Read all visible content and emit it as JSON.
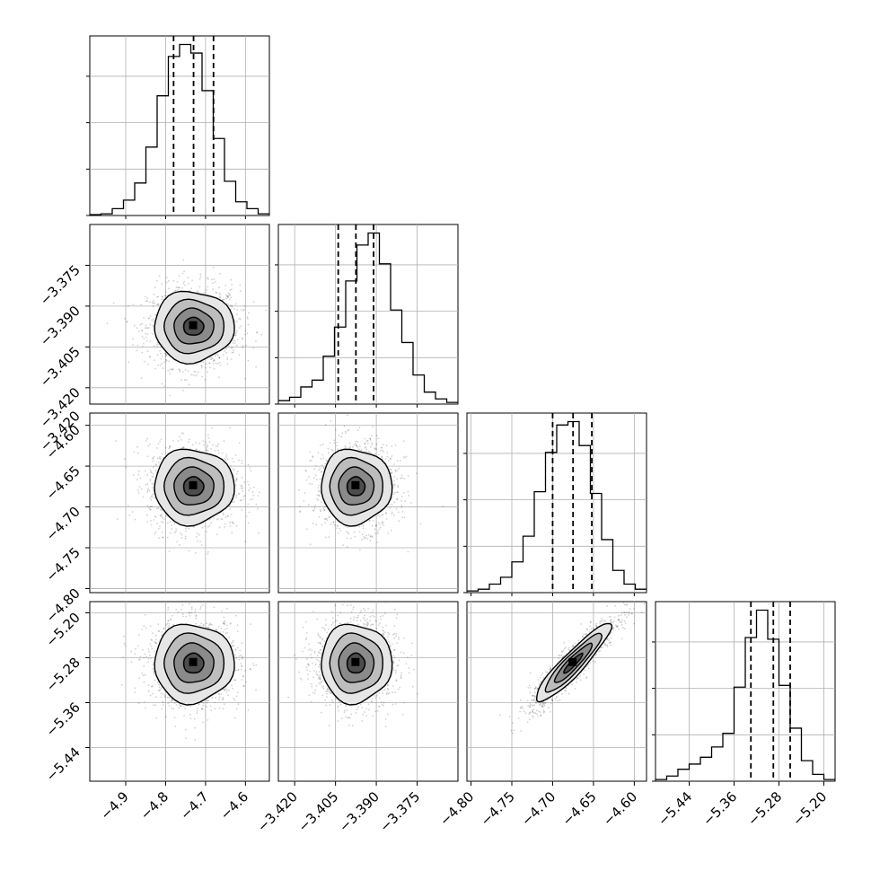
{
  "chart_data": {
    "type": "corner",
    "title": "",
    "grid": true,
    "parameters": [
      {
        "index": 0,
        "range": [
          -4.99,
          -4.54
        ],
        "ticks": [
          -4.9,
          -4.8,
          -4.7,
          -4.6
        ],
        "tick_labels": [
          "−4.9",
          "−4.8",
          "−4.7",
          "−4.6"
        ],
        "quantiles": [
          -4.78,
          -4.73,
          -4.68
        ],
        "hist_counts": [
          0.005,
          0.01,
          0.04,
          0.09,
          0.19,
          0.4,
          0.7,
          0.93,
          1.0,
          0.95,
          0.73,
          0.45,
          0.2,
          0.08,
          0.04,
          0.01
        ],
        "center": -4.73,
        "sigma": 0.05
      },
      {
        "index": 1,
        "range": [
          -3.426,
          -3.36
        ],
        "ticks": [
          -3.42,
          -3.405,
          -3.39,
          -3.375
        ],
        "tick_labels": [
          "−3.420",
          "−3.405",
          "−3.390",
          "−3.375"
        ],
        "quantiles": [
          -3.404,
          -3.3975,
          -3.391
        ],
        "hist_counts": [
          0.02,
          0.04,
          0.1,
          0.14,
          0.28,
          0.45,
          0.72,
          0.93,
          1.0,
          0.82,
          0.55,
          0.36,
          0.17,
          0.07,
          0.03,
          0.01
        ],
        "center": -3.3975,
        "sigma": 0.0065
      },
      {
        "index": 2,
        "range": [
          -4.805,
          -4.585
        ],
        "ticks": [
          -4.8,
          -4.75,
          -4.7,
          -4.65,
          -4.6
        ],
        "tick_labels": [
          "−4.80",
          "−4.75",
          "−4.70",
          "−4.65",
          "−4.60"
        ],
        "quantiles": [
          -4.7,
          -4.675,
          -4.652
        ],
        "hist_counts": [
          0.01,
          0.02,
          0.05,
          0.09,
          0.18,
          0.33,
          0.59,
          0.82,
          0.98,
          1.0,
          0.86,
          0.58,
          0.31,
          0.13,
          0.05,
          0.02
        ],
        "center": -4.675,
        "sigma": 0.023
      },
      {
        "index": 3,
        "range": [
          -5.5,
          -5.18
        ],
        "ticks": [
          -5.44,
          -5.36,
          -5.28,
          -5.2
        ],
        "tick_labels": [
          "−5.44",
          "−5.36",
          "−5.28",
          "−5.20"
        ],
        "quantiles": [
          -5.33,
          -5.29,
          -5.26
        ],
        "hist_counts": [
          0.01,
          0.03,
          0.07,
          0.1,
          0.14,
          0.2,
          0.28,
          0.55,
          0.84,
          1.0,
          0.83,
          0.56,
          0.31,
          0.12,
          0.04,
          0.01
        ],
        "center": -5.29,
        "sigma": 0.035
      }
    ],
    "correlations": {
      "1_0": 0.0,
      "2_0": 0.0,
      "2_1": 0.0,
      "3_0": 0.0,
      "3_1": 0.0,
      "3_2": 0.92
    },
    "contour_levels": [
      0.5,
      1.0,
      1.5,
      2.0
    ]
  }
}
